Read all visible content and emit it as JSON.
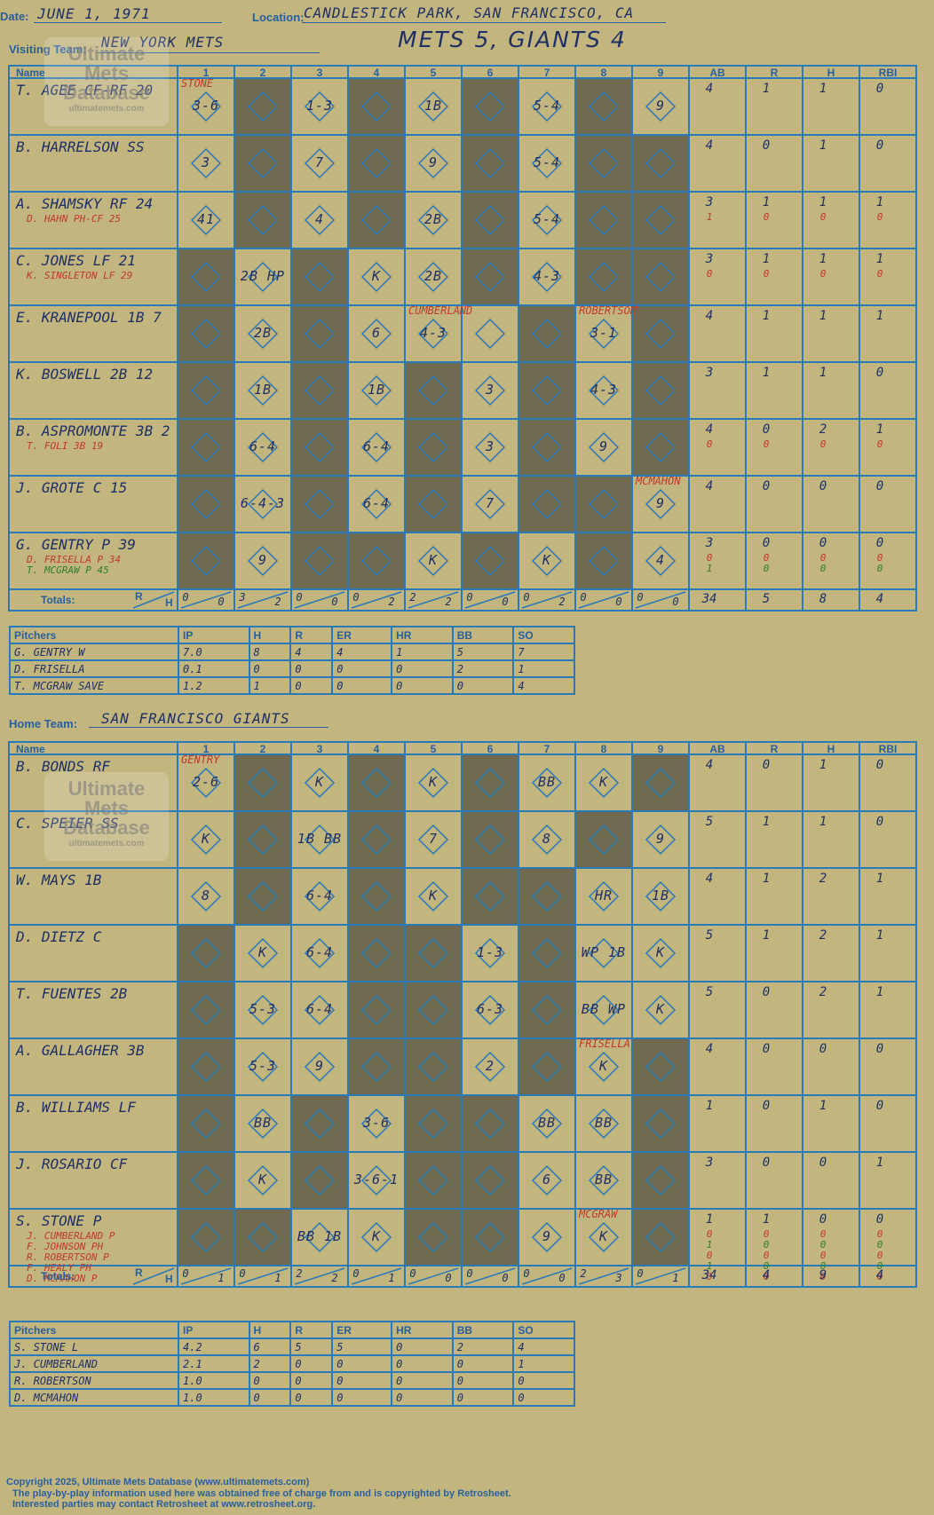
{
  "header": {
    "date_label": "Date:",
    "date_value": "JUNE 1, 1971",
    "location_label": "Location:",
    "location_value": "CANDLESTICK PARK, SAN FRANCISCO, CA",
    "visiting_label": "Visiting Team:",
    "visiting_value": "NEW YORK METS",
    "score_title": "METS 5, GIANTS 4",
    "home_label": "Home Team:",
    "home_value": "SAN FRANCISCO GIANTS"
  },
  "logo": {
    "line1": "Ultimate",
    "line2": "Mets",
    "line3": "Database",
    "url": "ultimatemets.com"
  },
  "grid_headers": {
    "name": "Name",
    "innings": [
      "1",
      "2",
      "3",
      "4",
      "5",
      "6",
      "7",
      "8",
      "9"
    ],
    "stats": [
      "AB",
      "R",
      "H",
      "RBI"
    ],
    "totals_label": "Totals:",
    "r_label": "R",
    "h_label": "H"
  },
  "visitor": {
    "batters": [
      {
        "name": "T. AGEE CF-RF  20",
        "subs": [],
        "stats": [
          [
            "4",
            "1",
            "1",
            "0"
          ]
        ]
      },
      {
        "name": "B. HARRELSON SS",
        "subs": [],
        "stats": [
          [
            "4",
            "0",
            "1",
            "0"
          ]
        ]
      },
      {
        "name": "A. SHAMSKY RF  24",
        "subs": [
          "D. HAHN PH-CF  25"
        ],
        "stats": [
          [
            "3",
            "1",
            "1",
            "1"
          ],
          [
            "1",
            "0",
            "0",
            "0"
          ]
        ]
      },
      {
        "name": "C. JONES LF  21",
        "subs": [
          "K. SINGLETON LF  29"
        ],
        "stats": [
          [
            "3",
            "1",
            "1",
            "1"
          ],
          [
            "0",
            "0",
            "0",
            "0"
          ]
        ]
      },
      {
        "name": "E. KRANEPOOL 1B  7",
        "subs": [],
        "stats": [
          [
            "4",
            "1",
            "1",
            "1"
          ]
        ]
      },
      {
        "name": "K. BOSWELL 2B  12",
        "subs": [],
        "stats": [
          [
            "3",
            "1",
            "1",
            "0"
          ]
        ]
      },
      {
        "name": "B. ASPROMONTE 3B  2",
        "subs": [
          "T. FOLI 3B  19"
        ],
        "stats": [
          [
            "4",
            "0",
            "2",
            "1"
          ],
          [
            "0",
            "0",
            "0",
            "0"
          ]
        ]
      },
      {
        "name": "J. GROTE C  15",
        "subs": [],
        "stats": [
          [
            "4",
            "0",
            "0",
            "0"
          ]
        ]
      },
      {
        "name": "G. GENTRY P  39",
        "subs": [
          "D. FRISELLA P  34",
          "T. MCGRAW P  45"
        ],
        "stats": [
          [
            "3",
            "0",
            "0",
            "0"
          ],
          [
            "0",
            "0",
            "0",
            "0"
          ],
          [
            "1",
            "0",
            "0",
            "0"
          ]
        ]
      }
    ],
    "plays": [
      {
        "row": 0,
        "inn": 1,
        "text": "3-6"
      },
      {
        "row": 0,
        "inn": 3,
        "text": "1-3"
      },
      {
        "row": 0,
        "inn": 5,
        "text": "1B"
      },
      {
        "row": 0,
        "inn": 7,
        "text": "5-4"
      },
      {
        "row": 0,
        "inn": 9,
        "text": "9"
      },
      {
        "row": 1,
        "inn": 1,
        "text": "3"
      },
      {
        "row": 1,
        "inn": 3,
        "text": "7"
      },
      {
        "row": 1,
        "inn": 5,
        "text": "9"
      },
      {
        "row": 1,
        "inn": 7,
        "text": "5-4"
      },
      {
        "row": 2,
        "inn": 1,
        "text": "41"
      },
      {
        "row": 2,
        "inn": 3,
        "text": "4"
      },
      {
        "row": 2,
        "inn": 5,
        "text": "2B"
      },
      {
        "row": 2,
        "inn": 7,
        "text": "5-4"
      },
      {
        "row": 3,
        "inn": 2,
        "text": "2B HP"
      },
      {
        "row": 3,
        "inn": 4,
        "text": "K"
      },
      {
        "row": 3,
        "inn": 5,
        "text": "2B"
      },
      {
        "row": 3,
        "inn": 7,
        "text": "4-3"
      },
      {
        "row": 4,
        "inn": 2,
        "text": "2B"
      },
      {
        "row": 4,
        "inn": 4,
        "text": "6"
      },
      {
        "row": 4,
        "inn": 5,
        "text": "4-3"
      },
      {
        "row": 4,
        "inn": 8,
        "text": "3-1"
      },
      {
        "row": 5,
        "inn": 2,
        "text": "1B"
      },
      {
        "row": 5,
        "inn": 4,
        "text": "1B"
      },
      {
        "row": 5,
        "inn": 6,
        "text": "3"
      },
      {
        "row": 5,
        "inn": 8,
        "text": "4-3"
      },
      {
        "row": 6,
        "inn": 2,
        "text": "6-4"
      },
      {
        "row": 6,
        "inn": 4,
        "text": "6-4"
      },
      {
        "row": 6,
        "inn": 6,
        "text": "3"
      },
      {
        "row": 6,
        "inn": 8,
        "text": "9"
      },
      {
        "row": 7,
        "inn": 2,
        "text": "6-4-3"
      },
      {
        "row": 7,
        "inn": 4,
        "text": "6-4"
      },
      {
        "row": 7,
        "inn": 6,
        "text": "7"
      },
      {
        "row": 7,
        "inn": 9,
        "text": "9"
      },
      {
        "row": 8,
        "inn": 2,
        "text": "9"
      },
      {
        "row": 8,
        "inn": 5,
        "text": "K"
      },
      {
        "row": 8,
        "inn": 7,
        "text": "K"
      },
      {
        "row": 8,
        "inn": 9,
        "text": "4"
      }
    ],
    "notes": [
      {
        "row": 0,
        "inn": 1,
        "text": "STONE"
      },
      {
        "row": 4,
        "inn": 5,
        "text": "CUMBERLAND"
      },
      {
        "row": 4,
        "inn": 8,
        "text": "ROBERTSON"
      },
      {
        "row": 7,
        "inn": 9,
        "text": "MCMAHON"
      }
    ],
    "totals_rh": [
      [
        "0",
        "0"
      ],
      [
        "3",
        "2"
      ],
      [
        "0",
        "0"
      ],
      [
        "0",
        "2"
      ],
      [
        "2",
        "2"
      ],
      [
        "0",
        "0"
      ],
      [
        "0",
        "2"
      ],
      [
        "0",
        "0"
      ],
      [
        "0",
        "0"
      ]
    ],
    "totals_stats": [
      "34",
      "5",
      "8",
      "4"
    ],
    "shaded": [
      [
        2,
        4,
        6,
        8
      ],
      [
        2,
        4,
        6,
        8,
        9
      ],
      [
        2,
        4,
        6,
        8,
        9
      ],
      [
        1,
        3,
        6,
        8,
        9
      ],
      [
        1,
        3,
        7,
        9
      ],
      [
        1,
        3,
        5,
        7,
        9
      ],
      [
        1,
        3,
        5,
        7,
        9
      ],
      [
        1,
        3,
        5,
        7,
        8
      ],
      [
        1,
        3,
        4,
        6,
        8
      ]
    ],
    "pitchers": {
      "headers": [
        "Pitchers",
        "IP",
        "H",
        "R",
        "ER",
        "HR",
        "BB",
        "SO"
      ],
      "rows": [
        [
          "G. GENTRY  W",
          "7.0",
          "8",
          "4",
          "4",
          "1",
          "5",
          "7"
        ],
        [
          "D. FRISELLA",
          "0.1",
          "0",
          "0",
          "0",
          "0",
          "2",
          "1"
        ],
        [
          "T. MCGRAW  SAVE",
          "1.2",
          "1",
          "0",
          "0",
          "0",
          "0",
          "4"
        ]
      ]
    }
  },
  "home": {
    "batters": [
      {
        "name": "B. BONDS RF",
        "subs": [],
        "stats": [
          [
            "4",
            "0",
            "1",
            "0"
          ]
        ]
      },
      {
        "name": "C. SPEIER SS",
        "subs": [],
        "stats": [
          [
            "5",
            "1",
            "1",
            "0"
          ]
        ]
      },
      {
        "name": "W. MAYS 1B",
        "subs": [],
        "stats": [
          [
            "4",
            "1",
            "2",
            "1"
          ]
        ]
      },
      {
        "name": "D. DIETZ C",
        "subs": [],
        "stats": [
          [
            "5",
            "1",
            "2",
            "1"
          ]
        ]
      },
      {
        "name": "T. FUENTES 2B",
        "subs": [],
        "stats": [
          [
            "5",
            "0",
            "2",
            "1"
          ]
        ]
      },
      {
        "name": "A. GALLAGHER 3B",
        "subs": [],
        "stats": [
          [
            "4",
            "0",
            "0",
            "0"
          ]
        ]
      },
      {
        "name": "B. WILLIAMS LF",
        "subs": [],
        "stats": [
          [
            "1",
            "0",
            "1",
            "0"
          ]
        ]
      },
      {
        "name": "J. ROSARIO CF",
        "subs": [],
        "stats": [
          [
            "3",
            "0",
            "0",
            "1"
          ]
        ]
      },
      {
        "name": "S. STONE P",
        "subs": [
          "J. CUMBERLAND P",
          "F. JOHNSON PH",
          "R. ROBERTSON P",
          "F. HEALY PH",
          "D. MCMAHON P"
        ],
        "stats": [
          [
            "1",
            "1",
            "0",
            "0"
          ],
          [
            "0",
            "0",
            "0",
            "0"
          ],
          [
            "1",
            "0",
            "0",
            "0"
          ],
          [
            "0",
            "0",
            "0",
            "0"
          ],
          [
            "1",
            "0",
            "0",
            "0"
          ],
          [
            "0",
            "0",
            "0",
            "0"
          ]
        ]
      }
    ],
    "plays": [
      {
        "row": 0,
        "inn": 1,
        "text": "2-6"
      },
      {
        "row": 0,
        "inn": 3,
        "text": "K"
      },
      {
        "row": 0,
        "inn": 5,
        "text": "K"
      },
      {
        "row": 0,
        "inn": 7,
        "text": "BB"
      },
      {
        "row": 0,
        "inn": 8,
        "text": "K"
      },
      {
        "row": 1,
        "inn": 1,
        "text": "K"
      },
      {
        "row": 1,
        "inn": 3,
        "text": "1B BB"
      },
      {
        "row": 1,
        "inn": 5,
        "text": "7"
      },
      {
        "row": 1,
        "inn": 7,
        "text": "8"
      },
      {
        "row": 1,
        "inn": 9,
        "text": "9"
      },
      {
        "row": 2,
        "inn": 1,
        "text": "8"
      },
      {
        "row": 2,
        "inn": 3,
        "text": "6-4"
      },
      {
        "row": 2,
        "inn": 5,
        "text": "K"
      },
      {
        "row": 2,
        "inn": 8,
        "text": "HR"
      },
      {
        "row": 2,
        "inn": 9,
        "text": "1B"
      },
      {
        "row": 3,
        "inn": 2,
        "text": "K"
      },
      {
        "row": 3,
        "inn": 3,
        "text": "6-4"
      },
      {
        "row": 3,
        "inn": 6,
        "text": "1-3"
      },
      {
        "row": 3,
        "inn": 8,
        "text": "WP 1B"
      },
      {
        "row": 3,
        "inn": 9,
        "text": "K"
      },
      {
        "row": 4,
        "inn": 2,
        "text": "5-3"
      },
      {
        "row": 4,
        "inn": 3,
        "text": "6-4"
      },
      {
        "row": 4,
        "inn": 6,
        "text": "6-3"
      },
      {
        "row": 4,
        "inn": 8,
        "text": "BB WP"
      },
      {
        "row": 4,
        "inn": 9,
        "text": "K"
      },
      {
        "row": 5,
        "inn": 2,
        "text": "5-3"
      },
      {
        "row": 5,
        "inn": 3,
        "text": "9"
      },
      {
        "row": 5,
        "inn": 6,
        "text": "2"
      },
      {
        "row": 5,
        "inn": 8,
        "text": "K"
      },
      {
        "row": 6,
        "inn": 2,
        "text": "BB"
      },
      {
        "row": 6,
        "inn": 4,
        "text": "3-6"
      },
      {
        "row": 6,
        "inn": 7,
        "text": "BB"
      },
      {
        "row": 6,
        "inn": 8,
        "text": "BB"
      },
      {
        "row": 7,
        "inn": 2,
        "text": "K"
      },
      {
        "row": 7,
        "inn": 4,
        "text": "3-6-1"
      },
      {
        "row": 7,
        "inn": 7,
        "text": "6"
      },
      {
        "row": 7,
        "inn": 8,
        "text": "BB"
      },
      {
        "row": 8,
        "inn": 3,
        "text": "BB 1B"
      },
      {
        "row": 8,
        "inn": 4,
        "text": "K"
      },
      {
        "row": 8,
        "inn": 7,
        "text": "9"
      },
      {
        "row": 8,
        "inn": 8,
        "text": "K"
      }
    ],
    "notes": [
      {
        "row": 0,
        "inn": 1,
        "text": "GENTRY"
      },
      {
        "row": 5,
        "inn": 8,
        "text": "FRISELLA"
      },
      {
        "row": 8,
        "inn": 8,
        "text": "MCGRAW"
      }
    ],
    "totals_rh": [
      [
        "0",
        "1"
      ],
      [
        "0",
        "1"
      ],
      [
        "2",
        "2"
      ],
      [
        "0",
        "1"
      ],
      [
        "0",
        "0"
      ],
      [
        "0",
        "0"
      ],
      [
        "0",
        "0"
      ],
      [
        "2",
        "3"
      ],
      [
        "0",
        "1"
      ]
    ],
    "totals_stats": [
      "34",
      "4",
      "9",
      "4"
    ],
    "shaded": [
      [
        2,
        4,
        6,
        9
      ],
      [
        2,
        4,
        6,
        8
      ],
      [
        2,
        4,
        6,
        7
      ],
      [
        1,
        4,
        5,
        7
      ],
      [
        1,
        4,
        5,
        7
      ],
      [
        1,
        4,
        5,
        7,
        9
      ],
      [
        1,
        3,
        5,
        6,
        9
      ],
      [
        1,
        3,
        5,
        6,
        9
      ],
      [
        1,
        2,
        5,
        6,
        9
      ]
    ],
    "pitchers": {
      "headers": [
        "Pitchers",
        "IP",
        "H",
        "R",
        "ER",
        "HR",
        "BB",
        "SO"
      ],
      "rows": [
        [
          "S. STONE  L",
          "4.2",
          "6",
          "5",
          "5",
          "0",
          "2",
          "4"
        ],
        [
          "J. CUMBERLAND",
          "2.1",
          "2",
          "0",
          "0",
          "0",
          "0",
          "1"
        ],
        [
          "R. ROBERTSON",
          "1.0",
          "0",
          "0",
          "0",
          "0",
          "0",
          "0"
        ],
        [
          "D. MCMAHON",
          "1.0",
          "0",
          "0",
          "0",
          "0",
          "0",
          "0"
        ]
      ]
    }
  },
  "footer": {
    "line1": "Copyright 2025, Ultimate Mets Database (www.ultimatemets.com)",
    "line2": "The play-by-play information used here was obtained free of charge from and is copyrighted by Retrosheet.",
    "line3": "Interested parties may contact Retrosheet at www.retrosheet.org."
  },
  "colors": {
    "background": "#c2b57e",
    "grid": "#2a79b8",
    "shade": "#6e6a4f",
    "ink": "#1f2f66",
    "note": "#c0392b"
  }
}
